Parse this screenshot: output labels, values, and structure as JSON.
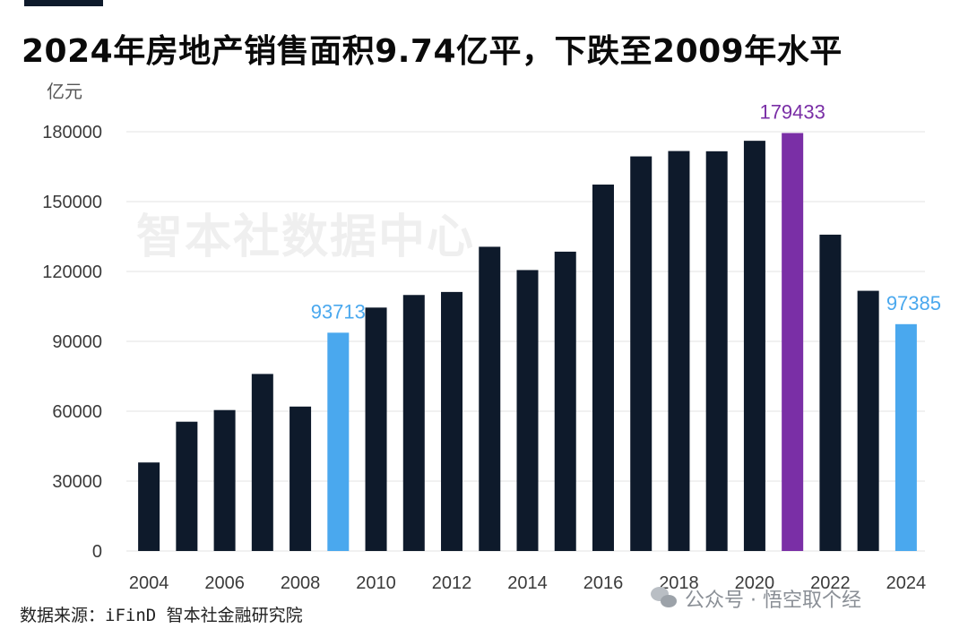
{
  "header": {
    "title": "2024年房地产销售面积9.74亿平，下跌至2009年水平",
    "unit": "亿元"
  },
  "watermark": "智本社数据中心",
  "footer": {
    "source": "数据来源：iFinD 智本社金融研究院",
    "wechat_label": "公众号 · 悟空取个经"
  },
  "colors": {
    "default_bar": "#0e1a2b",
    "highlight_blue": "#4aa8ee",
    "highlight_purple": "#7a2fa6",
    "grid": "#e3e3e3",
    "axis_text": "#3a3a3a"
  },
  "chart_data": {
    "type": "bar",
    "title": "2024年房地产销售面积9.74亿平，下跌至2009年水平",
    "ylabel": "亿元",
    "xlabel": "",
    "ylim": [
      0,
      180000
    ],
    "yticks": [
      0,
      30000,
      60000,
      90000,
      120000,
      150000,
      180000
    ],
    "categories": [
      "2004",
      "2005",
      "2006",
      "2007",
      "2008",
      "2009",
      "2010",
      "2011",
      "2012",
      "2013",
      "2014",
      "2015",
      "2016",
      "2017",
      "2018",
      "2019",
      "2020",
      "2021",
      "2022",
      "2023",
      "2024"
    ],
    "xtick_labels": [
      "2004",
      "2006",
      "2008",
      "2010",
      "2012",
      "2014",
      "2016",
      "2018",
      "2020",
      "2022",
      "2024"
    ],
    "values": [
      38000,
      55500,
      60500,
      76000,
      62000,
      93713,
      104500,
      109900,
      111200,
      130600,
      120600,
      128500,
      157300,
      169400,
      171700,
      171600,
      176100,
      179433,
      135800,
      111700,
      97385
    ],
    "highlights": [
      {
        "category": "2009",
        "value": 93713,
        "label": "93713",
        "color": "blue"
      },
      {
        "category": "2021",
        "value": 179433,
        "label": "179433",
        "color": "purple"
      },
      {
        "category": "2024",
        "value": 97385,
        "label": "97385",
        "color": "blue"
      }
    ],
    "grid": true,
    "legend": "none"
  }
}
